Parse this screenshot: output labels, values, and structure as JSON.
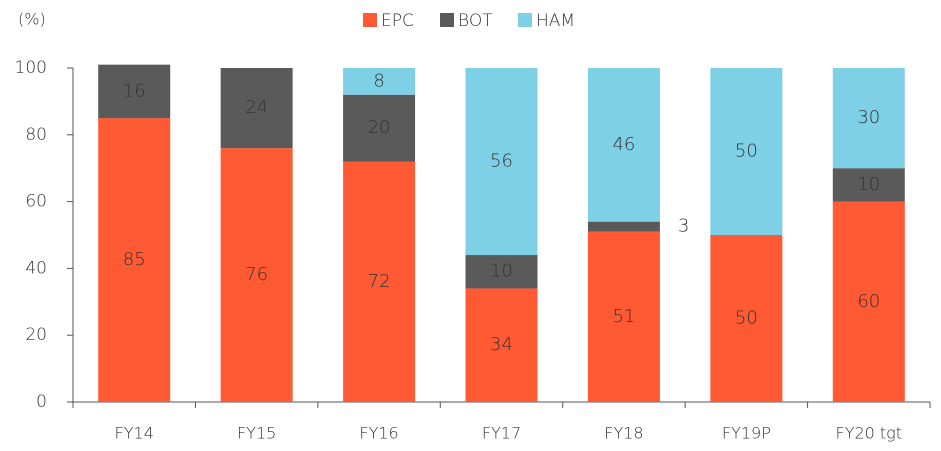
{
  "chart_data": {
    "type": "stacked_bar",
    "y_axis_label": "(%)",
    "categories": [
      "FY14",
      "FY15",
      "FY16",
      "FY17",
      "FY18",
      "FY19P",
      "FY20 tgt"
    ],
    "series": [
      {
        "name": "EPC",
        "color": "#ff5a33",
        "values": [
          85,
          76,
          72,
          34,
          51,
          50,
          60
        ]
      },
      {
        "name": "BOT",
        "color": "#5a5a5a",
        "values": [
          16,
          24,
          20,
          10,
          3,
          null,
          10
        ]
      },
      {
        "name": "HAM",
        "color": "#7ed0e6",
        "values": [
          null,
          null,
          8,
          56,
          46,
          50,
          30
        ]
      }
    ],
    "ylim": [
      0,
      100
    ],
    "yticks": [
      0,
      20,
      40,
      60,
      80,
      100
    ],
    "legend": "top"
  }
}
